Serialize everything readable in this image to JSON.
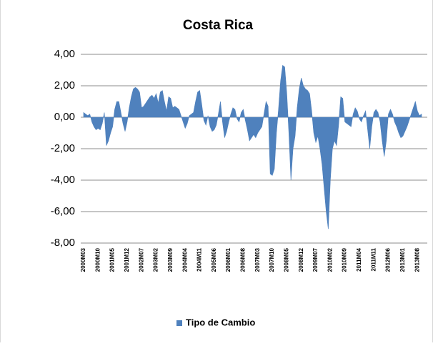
{
  "chart_data": {
    "type": "area",
    "title": "Costa Rica",
    "categories": [
      "2000M03",
      null,
      null,
      null,
      null,
      null,
      null,
      "2000M10",
      null,
      null,
      null,
      null,
      null,
      null,
      "2001M05",
      null,
      null,
      null,
      null,
      null,
      null,
      "2001M12",
      null,
      null,
      null,
      null,
      null,
      null,
      "2002M07",
      null,
      null,
      null,
      null,
      null,
      null,
      "2003M02",
      null,
      null,
      null,
      null,
      null,
      null,
      "2003M09",
      null,
      null,
      null,
      null,
      null,
      null,
      "2004M04",
      null,
      null,
      null,
      null,
      null,
      null,
      "2004M11",
      null,
      null,
      null,
      null,
      null,
      null,
      "2005M06",
      null,
      null,
      null,
      null,
      null,
      null,
      "2006M01",
      null,
      null,
      null,
      null,
      null,
      null,
      "2006M08",
      null,
      null,
      null,
      null,
      null,
      null,
      "2007M03",
      null,
      null,
      null,
      null,
      null,
      null,
      "2007M10",
      null,
      null,
      null,
      null,
      null,
      null,
      "2008M05",
      null,
      null,
      null,
      null,
      null,
      null,
      "2008M12",
      null,
      null,
      null,
      null,
      null,
      null,
      "2009M07",
      null,
      null,
      null,
      null,
      null,
      null,
      "2010M02",
      null,
      null,
      null,
      null,
      null,
      null,
      "2010M09",
      null,
      null,
      null,
      null,
      null,
      null,
      "2011M04",
      null,
      null,
      null,
      null,
      null,
      null,
      "2011M11",
      null,
      null,
      null,
      null,
      null,
      null,
      "2012M06",
      null,
      null,
      null,
      null,
      null,
      null,
      "2013M01",
      null,
      null,
      null,
      null,
      null,
      null,
      "2013M08",
      null,
      null
    ],
    "series": [
      {
        "name": "Tipo de Cambio",
        "color": "#4f81bd",
        "values": [
          0.3,
          0.2,
          0.1,
          0.2,
          -0.3,
          -0.6,
          -0.8,
          -0.7,
          -0.8,
          -0.4,
          0.3,
          -1.8,
          -1.5,
          -1.0,
          -0.6,
          0.5,
          1.0,
          1.0,
          0.3,
          -0.4,
          -0.9,
          -0.3,
          0.6,
          1.3,
          1.8,
          1.9,
          1.8,
          1.6,
          0.6,
          0.7,
          0.9,
          1.1,
          1.3,
          1.4,
          1.2,
          1.5,
          0.9,
          1.6,
          1.7,
          1.0,
          0.4,
          1.3,
          1.2,
          0.6,
          0.7,
          0.6,
          0.5,
          0.1,
          -0.3,
          -0.7,
          -0.4,
          0.1,
          0.2,
          0.3,
          1.0,
          1.6,
          1.7,
          0.8,
          -0.2,
          -0.5,
          0.1,
          -0.6,
          -0.9,
          -0.8,
          -0.5,
          0.2,
          1.0,
          -0.3,
          -1.3,
          -0.9,
          -0.3,
          0.2,
          0.6,
          0.5,
          -0.1,
          -0.3,
          0.3,
          0.5,
          -0.2,
          -0.8,
          -1.5,
          -1.3,
          -1.1,
          -1.3,
          -1.0,
          -0.8,
          -0.6,
          0.2,
          1.0,
          0.7,
          -3.6,
          -3.7,
          -3.3,
          -1.0,
          0.5,
          2.3,
          3.3,
          3.2,
          1.5,
          -1.0,
          -4.0,
          -2.0,
          -1.2,
          0.6,
          1.8,
          2.5,
          2.0,
          1.8,
          1.7,
          1.5,
          0.4,
          -1.0,
          -1.6,
          -1.2,
          -2.0,
          -3.0,
          -4.5,
          -6.0,
          -7.1,
          -4.0,
          -2.0,
          -1.5,
          -1.8,
          -0.5,
          1.3,
          1.2,
          -0.3,
          -0.4,
          -0.5,
          -0.6,
          0.2,
          0.6,
          0.4,
          -0.1,
          -0.3,
          0.1,
          0.4,
          -0.8,
          -2.0,
          -0.6,
          0.3,
          0.5,
          0.3,
          -0.3,
          -1.5,
          -2.5,
          -1.5,
          0.2,
          0.5,
          0.2,
          -0.3,
          -0.6,
          -1.0,
          -1.3,
          -1.2,
          -0.9,
          -0.6,
          -0.2,
          0.2,
          0.6,
          1.0,
          0.4,
          0.1,
          0.2
        ]
      }
    ],
    "ylim": [
      -8,
      4
    ],
    "yticks": [
      {
        "value": -8,
        "label": "-8,00"
      },
      {
        "value": -6,
        "label": "-6,00"
      },
      {
        "value": -4,
        "label": "-4,00"
      },
      {
        "value": -2,
        "label": "-2,00"
      },
      {
        "value": 0,
        "label": "0,00"
      },
      {
        "value": 2,
        "label": "2,00"
      },
      {
        "value": 4,
        "label": "4,00"
      }
    ],
    "grid": true,
    "legend": "bottom"
  }
}
